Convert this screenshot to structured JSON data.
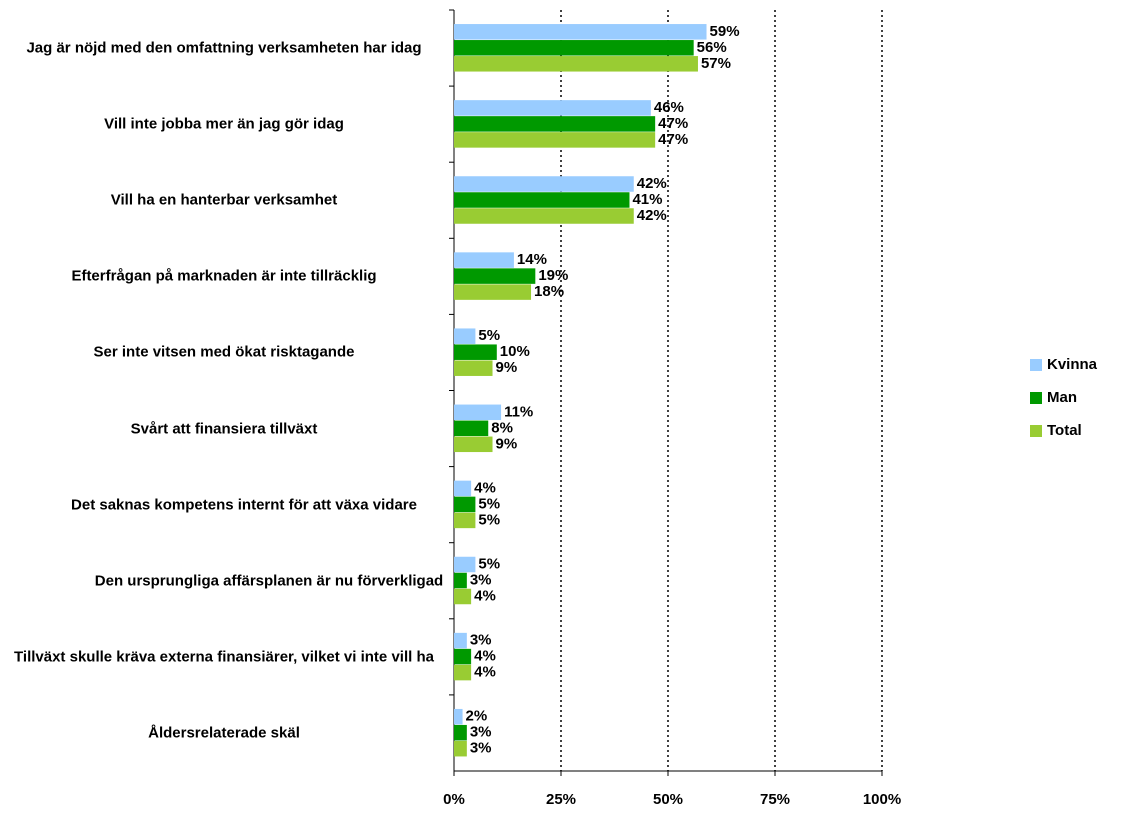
{
  "chart_data": {
    "type": "bar",
    "orientation": "horizontal",
    "categories": [
      "Jag är nöjd med den omfattning verksamheten har idag",
      "Vill inte jobba mer än jag gör idag",
      "Vill ha en hanterbar verksamhet",
      "Efterfrågan på marknaden är inte tillräcklig",
      "Ser inte vitsen med ökat risktagande",
      "Svårt att finansiera tillväxt",
      "Det saknas kompetens internt för att växa vidare",
      "Den ursprungliga affärsplanen är nu förverkligad",
      "Tillväxt skulle kräva externa finansiärer, vilket vi inte vill ha",
      "Åldersrelaterade skäl"
    ],
    "series": [
      {
        "name": "Kvinna",
        "color": "#99ccff",
        "values": [
          59,
          46,
          42,
          14,
          5,
          11,
          4,
          5,
          3,
          2
        ],
        "value_labels": [
          "59%",
          "46%",
          "42%",
          "14%",
          "5%",
          "11%",
          "4%",
          "5%",
          "3%",
          "2%"
        ]
      },
      {
        "name": "Man",
        "color": "#009900",
        "values": [
          56,
          47,
          41,
          19,
          10,
          8,
          5,
          3,
          4,
          3
        ],
        "value_labels": [
          "56%",
          "47%",
          "41%",
          "19%",
          "10%",
          "8%",
          "5%",
          "3%",
          "4%",
          "3%"
        ]
      },
      {
        "name": "Total",
        "color": "#99cc33",
        "values": [
          57,
          47,
          42,
          18,
          9,
          9,
          5,
          4,
          4,
          3
        ],
        "value_labels": [
          "57%",
          "47%",
          "42%",
          "18%",
          "9%",
          "9%",
          "5%",
          "4%",
          "4%",
          "3%"
        ]
      }
    ],
    "xlim": [
      0,
      100
    ],
    "xticks": [
      {
        "value": 0,
        "label": "0%"
      },
      {
        "value": 25,
        "label": "25%"
      },
      {
        "value": 50,
        "label": "50%"
      },
      {
        "value": 75,
        "label": "75%"
      },
      {
        "value": 100,
        "label": "100%"
      }
    ],
    "grid": true,
    "legend": "right"
  }
}
